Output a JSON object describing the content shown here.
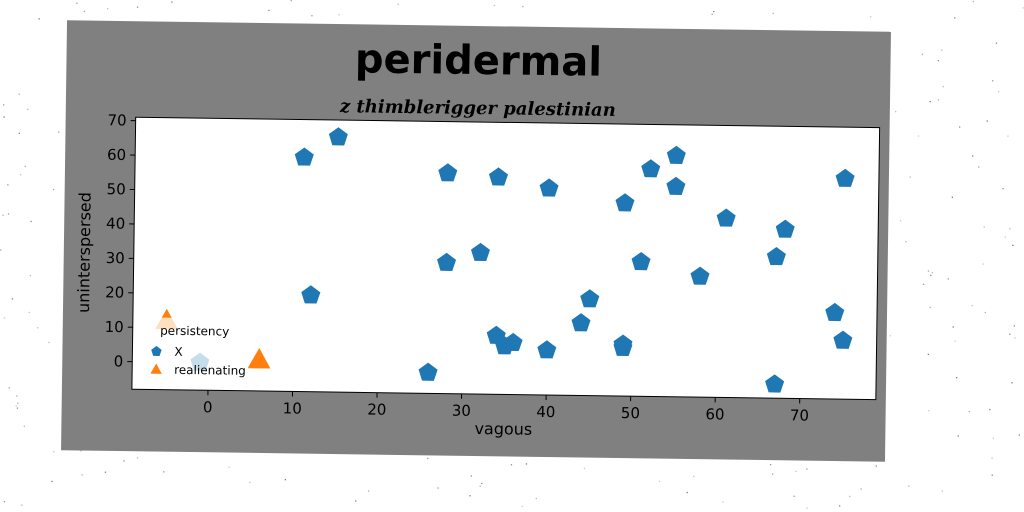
{
  "chart_data": {
    "type": "scatter",
    "title": "peridermal",
    "subtitle": "z thimblerigger palestinian",
    "xlabel": "vagous",
    "ylabel": "uninterspersed",
    "xlim": [
      -9,
      79
    ],
    "ylim": [
      -8,
      71
    ],
    "xticks": [
      0,
      10,
      20,
      30,
      40,
      50,
      60,
      70
    ],
    "yticks": [
      0,
      10,
      20,
      30,
      40,
      50,
      60,
      70
    ],
    "grid": false,
    "legend": {
      "title": "persistency",
      "placement": "lower-left"
    },
    "colors": {
      "X": "#1f77b4",
      "realienating": "#ff7f0e"
    },
    "series": [
      {
        "name": "X",
        "marker": "pentagon",
        "points": [
          [
            -1,
            0
          ],
          [
            11,
            60
          ],
          [
            12,
            20
          ],
          [
            15,
            66
          ],
          [
            26,
            -2
          ],
          [
            28,
            56
          ],
          [
            28,
            30
          ],
          [
            32,
            33
          ],
          [
            34,
            55
          ],
          [
            34,
            9
          ],
          [
            35,
            6
          ],
          [
            36,
            7
          ],
          [
            40,
            52
          ],
          [
            40,
            5
          ],
          [
            44,
            13
          ],
          [
            45,
            20
          ],
          [
            49,
            48
          ],
          [
            49,
            7
          ],
          [
            49,
            6
          ],
          [
            51,
            31
          ],
          [
            52,
            58
          ],
          [
            55,
            62
          ],
          [
            55,
            53
          ],
          [
            58,
            27
          ],
          [
            61,
            44
          ],
          [
            67,
            -4
          ],
          [
            67,
            33
          ],
          [
            68,
            41
          ],
          [
            74,
            17
          ],
          [
            75,
            9
          ],
          [
            75,
            56
          ]
        ]
      },
      {
        "name": "realienating",
        "marker": "triangle",
        "points": [
          [
            -5,
            12
          ],
          [
            6,
            1
          ]
        ]
      }
    ]
  }
}
